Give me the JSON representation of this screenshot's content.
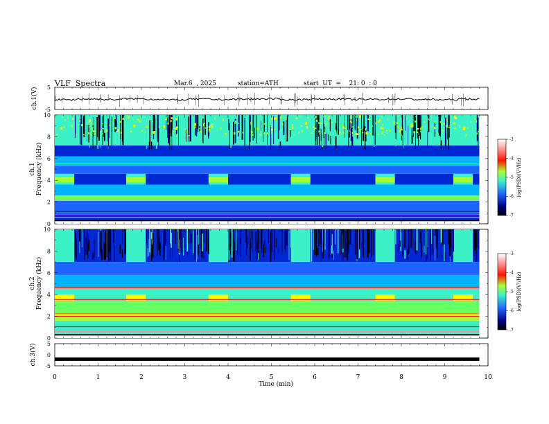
{
  "header": {
    "title": "VLF  Spectra",
    "date": "Mar.6  , 2025",
    "station": "station=ATH",
    "start_ut": "start  UT  =    21: 0  : 0"
  },
  "chart_data": [
    {
      "type": "line",
      "panel": "ch1-waveform",
      "ylabel": "ch.1(V)",
      "ylim": [
        -5,
        5
      ],
      "y_ticks": [
        "5",
        "-5"
      ],
      "xlim": [
        0,
        10
      ],
      "x_note": "waveform around -0.4 V with spikes",
      "y": [
        -0.6,
        -0.3,
        -0.5,
        -0.2,
        -0.4,
        -0.7,
        -0.3,
        -0.5,
        -0.4,
        -0.2,
        -0.6,
        -0.4,
        -0.3,
        -0.5,
        -0.4,
        -0.3,
        -0.5,
        -0.6,
        -0.3,
        -0.4
      ]
    },
    {
      "type": "heatmap",
      "panel": "ch1-spectrogram",
      "ylabel": "ch.1\nFrequency  (kHz)",
      "ylim": [
        0,
        10
      ],
      "y_ticks": [
        "0",
        "2",
        "4",
        "6",
        "8",
        "10"
      ],
      "xlim": [
        0,
        9.8
      ],
      "colorbar": {
        "label": "log(PSD)(V²/Hz)",
        "range": [
          -7,
          -3
        ],
        "ticks": [
          "-3",
          "-4",
          "-5",
          "-6",
          "-7"
        ]
      },
      "bright_block_times_min": [
        0.0,
        1.65,
        3.55,
        5.45,
        7.4,
        9.2
      ],
      "bright_block_width_min": 0.45
    },
    {
      "type": "heatmap",
      "panel": "ch2-spectrogram",
      "ylabel": "ch.2\nFrequency  (kHz)",
      "ylim": [
        0,
        10
      ],
      "y_ticks": [
        "0",
        "2",
        "4",
        "6",
        "8",
        "10"
      ],
      "xlim": [
        0,
        9.8
      ],
      "colorbar": {
        "label": "log(PSD)(V²/Hz)",
        "range": [
          -7,
          -3
        ],
        "ticks": [
          "-3",
          "-4",
          "-5",
          "-6",
          "-7"
        ]
      },
      "bright_block_times_min": [
        0.0,
        1.65,
        3.55,
        5.45,
        7.4,
        9.2
      ],
      "bright_block_width_min": 0.45
    },
    {
      "type": "line",
      "panel": "ch3-waveform",
      "ylabel": "ch.3(V)",
      "ylim": [
        -5,
        5
      ],
      "y_ticks": [
        "5",
        "0",
        "-5"
      ],
      "xlim": [
        0,
        10
      ],
      "xlabel": "Time  (min)",
      "x_ticks": [
        "0",
        "1",
        "2",
        "3",
        "4",
        "5",
        "6",
        "7",
        "8",
        "9",
        "10"
      ],
      "y": [
        -2,
        -2
      ]
    }
  ],
  "colors": {
    "low": "#00008b",
    "mid_low": "#1e64ff",
    "mid": "#3cf0c8",
    "mid_high": "#aaff32",
    "high": "#ff1400",
    "top": "#ffffff"
  }
}
